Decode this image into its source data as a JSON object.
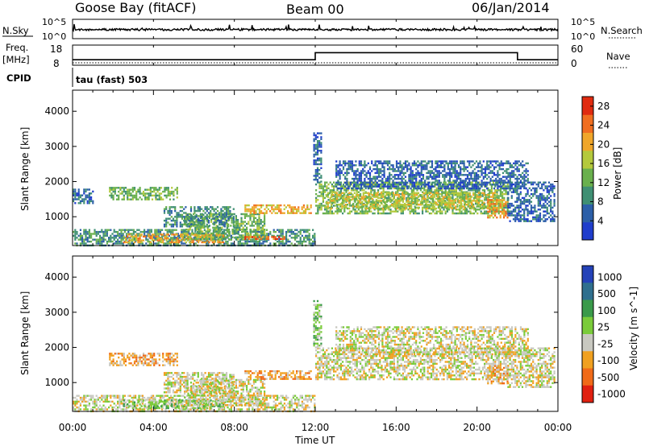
{
  "header": {
    "station": "Goose Bay (fitACF)",
    "beam": "Beam 00",
    "date": "06/Jan/2014"
  },
  "strip_nsky": {
    "left_label": "N.Sky",
    "right_label": "N.Search",
    "left_ticks": [
      "10^5",
      "10^0"
    ],
    "right_ticks": [
      "10^5",
      "10^0"
    ]
  },
  "strip_freq": {
    "left_label_1": "Freq.",
    "left_label_2": "[MHz]",
    "right_label": "Nave",
    "left_ticks": [
      "18",
      "8"
    ],
    "right_ticks": [
      "60",
      "0"
    ],
    "freq_steps": [
      {
        "t0": 0,
        "t1": 12,
        "freq": 10
      },
      {
        "t0": 12,
        "t1": 22,
        "freq": 14.6
      },
      {
        "t0": 22,
        "t1": 24,
        "freq": 10
      }
    ],
    "nave_value": 0
  },
  "cpid": {
    "label": "CPID",
    "value": "tau (fast) 503"
  },
  "chart_data": [
    {
      "type": "heatmap",
      "title": "Power",
      "xlabel": "",
      "ylabel": "Slant Range [km]",
      "colorbar_label": "Power [dB]",
      "xlim": [
        0,
        24
      ],
      "ylim": [
        180,
        4600
      ],
      "yticks": [
        1000,
        2000,
        3000,
        4000
      ],
      "colorbar_ticks": [
        "4",
        "8",
        "12",
        "16",
        "20",
        "24",
        "28"
      ],
      "colorbar_range": [
        0,
        30
      ],
      "colors": [
        "#1f3dcc",
        "#2c5fa8",
        "#3f8f73",
        "#69b04d",
        "#b4c93c",
        "#f0a62a",
        "#f06e20",
        "#e02b10"
      ],
      "regions": [
        {
          "t0": 0.0,
          "t1": 12.0,
          "r0": 200,
          "r1": 650,
          "level": 2
        },
        {
          "t0": 2.5,
          "t1": 7.5,
          "r0": 280,
          "r1": 520,
          "level": 5
        },
        {
          "t0": 5.5,
          "t1": 9.5,
          "r0": 350,
          "r1": 1100,
          "level": 3
        },
        {
          "t0": 8.5,
          "t1": 10.5,
          "r0": 350,
          "r1": 450,
          "level": 6
        },
        {
          "t0": 8.5,
          "t1": 11.8,
          "r0": 1100,
          "r1": 1350,
          "level": 5
        },
        {
          "t0": 1.8,
          "t1": 5.2,
          "r0": 1500,
          "r1": 1850,
          "level": 3
        },
        {
          "t0": 4.5,
          "t1": 8.0,
          "r0": 700,
          "r1": 1300,
          "level": 2
        },
        {
          "t0": 12.0,
          "t1": 21.5,
          "r0": 1100,
          "r1": 2000,
          "level": 3
        },
        {
          "t0": 12.5,
          "t1": 21.0,
          "r0": 1250,
          "r1": 1700,
          "level": 4
        },
        {
          "t0": 13.0,
          "t1": 22.5,
          "r0": 1800,
          "r1": 2600,
          "level": 1
        },
        {
          "t0": 20.5,
          "t1": 21.5,
          "r0": 1000,
          "r1": 1500,
          "level": 5
        },
        {
          "t0": 11.9,
          "t1": 12.3,
          "r0": 2000,
          "r1": 3400,
          "level": 1
        },
        {
          "t0": 0.0,
          "t1": 1.0,
          "r0": 1400,
          "r1": 1800,
          "level": 1
        },
        {
          "t0": 21.5,
          "t1": 23.8,
          "r0": 900,
          "r1": 2000,
          "level": 1
        }
      ]
    },
    {
      "type": "heatmap",
      "title": "Velocity",
      "xlabel": "Time UT",
      "ylabel": "Slant Range [km]",
      "colorbar_label": "Velocity [m s^-1]",
      "xlim": [
        0,
        24
      ],
      "ylim": [
        180,
        4600
      ],
      "xticks": [
        "00:00",
        "04:00",
        "08:00",
        "12:00",
        "16:00",
        "20:00",
        "00:00"
      ],
      "yticks": [
        1000,
        2000,
        3000,
        4000
      ],
      "colorbar_ticks": [
        "1000",
        "500",
        "100",
        "25",
        "-25",
        "-100",
        "-500",
        "-1000"
      ],
      "colors": [
        "#2442b8",
        "#2f6f8e",
        "#3a9a4a",
        "#7acb3a",
        "#c8c8c0",
        "#f0a020",
        "#f06a18",
        "#e02010"
      ],
      "regions": [
        {
          "t0": 0.0,
          "t1": 12.0,
          "r0": 200,
          "r1": 650,
          "level": 4
        },
        {
          "t0": 2.5,
          "t1": 7.5,
          "r0": 280,
          "r1": 520,
          "level": 3
        },
        {
          "t0": 5.5,
          "t1": 9.5,
          "r0": 350,
          "r1": 1100,
          "level": 4
        },
        {
          "t0": 8.5,
          "t1": 11.8,
          "r0": 1100,
          "r1": 1350,
          "level": 5
        },
        {
          "t0": 1.8,
          "t1": 5.2,
          "r0": 1500,
          "r1": 1850,
          "level": 5
        },
        {
          "t0": 4.5,
          "t1": 8.0,
          "r0": 700,
          "r1": 1300,
          "level": 4
        },
        {
          "t0": 12.0,
          "t1": 21.5,
          "r0": 1100,
          "r1": 2000,
          "level": 4
        },
        {
          "t0": 13.0,
          "t1": 22.5,
          "r0": 1800,
          "r1": 2600,
          "level": 4
        },
        {
          "t0": 20.5,
          "t1": 21.5,
          "r0": 1000,
          "r1": 1500,
          "level": 5
        },
        {
          "t0": 11.9,
          "t1": 12.3,
          "r0": 2000,
          "r1": 3400,
          "level": 3
        },
        {
          "t0": 21.5,
          "t1": 23.8,
          "r0": 900,
          "r1": 2000,
          "level": 4
        }
      ]
    }
  ]
}
